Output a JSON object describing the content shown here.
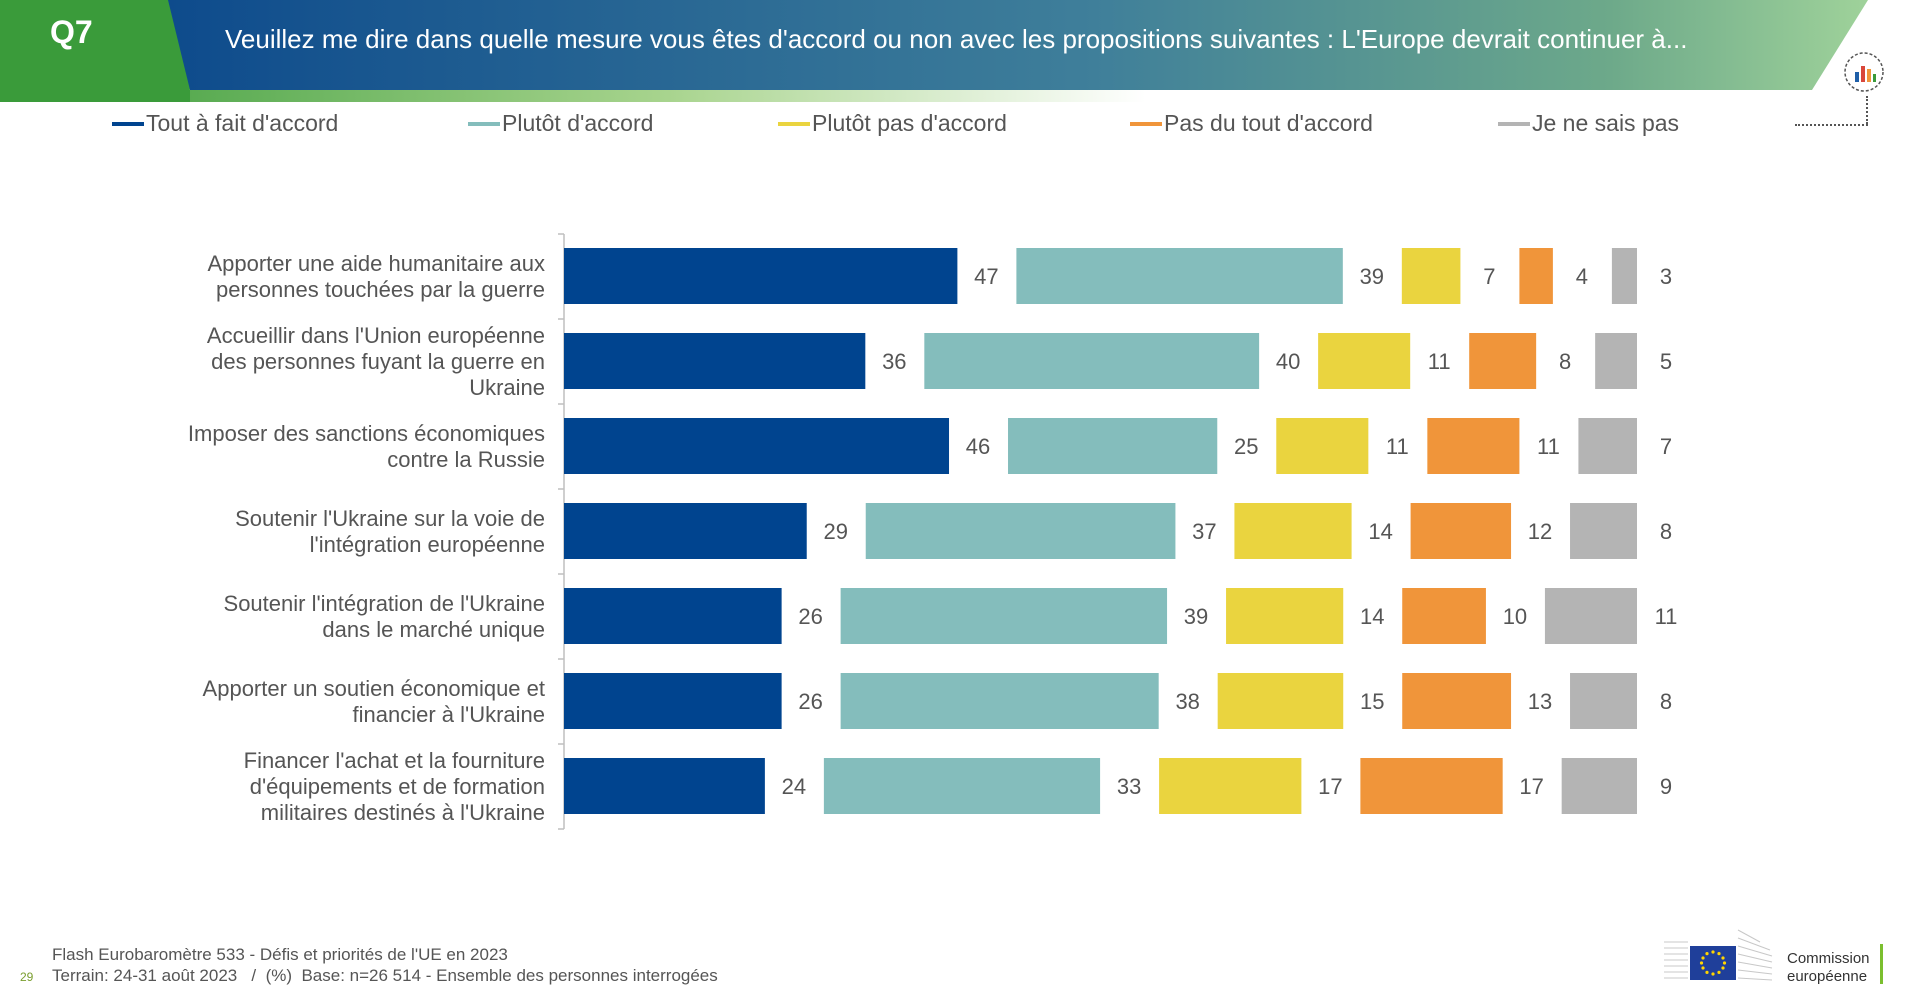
{
  "header": {
    "badge": "Q7",
    "question": "Veuillez me dire dans quelle mesure vous êtes d'accord ou non avec les propositions suivantes : L'Europe devrait continuer à..."
  },
  "colors": {
    "tout_a_fait": "#00448f",
    "plutot": "#84bdbc",
    "plutot_pas": "#ead43f",
    "pas_du_tout": "#f0953a",
    "ne_sais_pas": "#b4b4b4",
    "header_green": "#3a9b3a",
    "header_blue": "#0d4a8c"
  },
  "legend": [
    {
      "label": "Tout à fait d'accord",
      "color": "#00448f"
    },
    {
      "label": "Plutôt d'accord",
      "color": "#84bdbc"
    },
    {
      "label": "Plutôt pas d'accord",
      "color": "#ead43f"
    },
    {
      "label": "Pas du tout d'accord",
      "color": "#f0953a"
    },
    {
      "label": "Je ne sais pas",
      "color": "#b4b4b4"
    }
  ],
  "chart_data": {
    "type": "bar",
    "orientation": "horizontal",
    "unit": "%",
    "categories": [
      "Apporter une aide humanitaire aux personnes touchées par la guerre",
      "Accueillir dans l'Union européenne des personnes fuyant la guerre en Ukraine",
      "Imposer des sanctions économiques contre la Russie",
      "Soutenir l'Ukraine sur la voie de l'intégration européenne",
      "Soutenir l'intégration de l'Ukraine dans le marché unique",
      "Apporter un soutien économique et financier à l'Ukraine",
      "Financer l'achat et la fourniture d'équipements et de formation militaires destinés à l'Ukraine"
    ],
    "category_lines": [
      [
        "Apporter une aide humanitaire aux",
        "personnes touchées par la guerre"
      ],
      [
        "Accueillir dans l'Union européenne",
        "des personnes fuyant la guerre en",
        "Ukraine"
      ],
      [
        "Imposer des sanctions économiques",
        "contre la Russie"
      ],
      [
        "Soutenir l'Ukraine sur la voie de",
        "l'intégration européenne"
      ],
      [
        "Soutenir l'intégration de l'Ukraine",
        "dans le marché unique"
      ],
      [
        "Apporter un soutien économique et",
        "financier à l'Ukraine"
      ],
      [
        "Financer l'achat et la fourniture",
        "d'équipements et de formation",
        "militaires destinés à l'Ukraine"
      ]
    ],
    "series": [
      {
        "name": "Tout à fait d'accord",
        "color": "#00448f",
        "values": [
          47,
          36,
          46,
          29,
          26,
          26,
          24
        ]
      },
      {
        "name": "Plutôt d'accord",
        "color": "#84bdbc",
        "values": [
          39,
          40,
          25,
          37,
          39,
          38,
          33
        ]
      },
      {
        "name": "Plutôt pas d'accord",
        "color": "#ead43f",
        "values": [
          7,
          11,
          11,
          14,
          14,
          15,
          17
        ]
      },
      {
        "name": "Pas du tout d'accord",
        "color": "#f0953a",
        "values": [
          4,
          8,
          11,
          12,
          10,
          13,
          17
        ]
      },
      {
        "name": "Je ne sais pas",
        "color": "#b4b4b4",
        "values": [
          3,
          5,
          7,
          8,
          11,
          8,
          9
        ]
      }
    ],
    "legend_position": "top",
    "grid": false
  },
  "footer": {
    "line1": "Flash Eurobaromètre 533 - Défis et priorités de l'UE en 2023",
    "line2": "Terrain: 24-31 août 2023   /  (%)  Base: n=26 514 - Ensemble des personnes interrogées",
    "page": "29"
  },
  "logo": {
    "line1": "Commission",
    "line2": "européenne"
  }
}
